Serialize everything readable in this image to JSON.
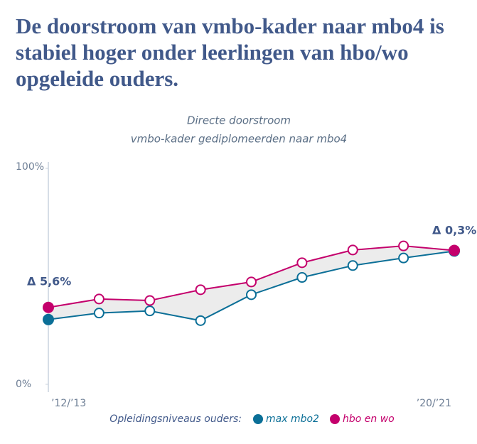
{
  "chart_data": {
    "type": "line",
    "title": "De doorstroom van vmbo-kader naar mbo4 is stabiel hoger onder leerlingen van hbo/wo opgeleide ouders.",
    "subtitle": [
      "Directe doorstroom",
      "vmbo-kader gediplomeerden naar mbo4"
    ],
    "categories": [
      "’12/’13",
      null,
      null,
      null,
      null,
      null,
      null,
      null,
      "’20/’21"
    ],
    "series": [
      {
        "name": "max mbo2",
        "color": "#0b6f97",
        "values": [
          30,
          33,
          34,
          29.5,
          41.5,
          49.5,
          55,
          58.5,
          61.7
        ]
      },
      {
        "name": "hbo en wo",
        "color": "#c4006c",
        "values": [
          35.6,
          39.5,
          38.8,
          43.8,
          47.4,
          56.3,
          62.2,
          64.1,
          62
        ]
      }
    ],
    "ylim": [
      0,
      100
    ],
    "yticks": [
      {
        "value": 0,
        "label": "0%"
      },
      {
        "value": 100,
        "label": "100%"
      }
    ],
    "legend_title": "Opleidingsniveaus ouders:",
    "annotations": [
      "Δ 5,6%",
      "Δ 0,3%"
    ]
  }
}
